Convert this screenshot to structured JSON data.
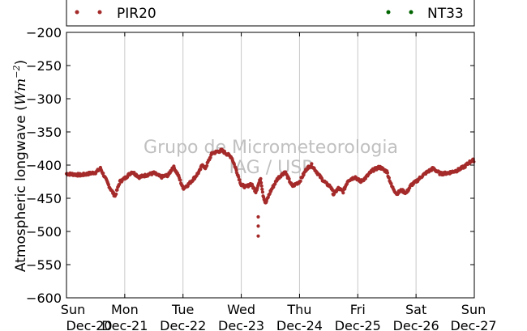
{
  "chart_data": {
    "type": "scatter",
    "title": "",
    "xlabel": "",
    "ylabel": "Atmospheric longwave (Wm⁻²)",
    "ylabel_main": "Atmospheric longwave (",
    "ylabel_unit": "Wm",
    "ylabel_sup": "−2",
    "ylabel_close": ")",
    "ylim": [
      -600,
      -200
    ],
    "yticks": [
      -200,
      -250,
      -300,
      -350,
      -400,
      -450,
      -500,
      -550,
      -600
    ],
    "ytick_labels": [
      "−200",
      "−250",
      "−300",
      "−350",
      "−400",
      "−450",
      "−500",
      "−550",
      "−600"
    ],
    "xlim": [
      "Dec-20",
      "Dec-27"
    ],
    "xticks": [
      {
        "day": "Sun",
        "date": "Dec-20"
      },
      {
        "day": "Mon",
        "date": "Dec-21"
      },
      {
        "day": "Tue",
        "date": "Dec-22"
      },
      {
        "day": "Wed",
        "date": "Dec-23"
      },
      {
        "day": "Thu",
        "date": "Dec-24"
      },
      {
        "day": "Fri",
        "date": "Dec-25"
      },
      {
        "day": "Sat",
        "date": "Dec-26"
      },
      {
        "day": "Sun",
        "date": "Dec-27"
      }
    ],
    "grid": "vertical",
    "legend_placement": "top",
    "watermark": [
      "Grupo de Micrometeorologia",
      "IAG / USP"
    ],
    "series": [
      {
        "name": "PIR20",
        "color": "#a52a2a",
        "points": [
          [
            "Dec-20 00:00",
            -413
          ],
          [
            "Dec-20 06:00",
            -415
          ],
          [
            "Dec-20 12:00",
            -411
          ],
          [
            "Dec-20 14:00",
            -405
          ],
          [
            "Dec-20 16:00",
            -420
          ],
          [
            "Dec-20 18:00",
            -435
          ],
          [
            "Dec-20 20:00",
            -447
          ],
          [
            "Dec-20 22:00",
            -425
          ],
          [
            "Dec-21 00:00",
            -420
          ],
          [
            "Dec-21 03:00",
            -410
          ],
          [
            "Dec-21 06:00",
            -418
          ],
          [
            "Dec-21 09:00",
            -415
          ],
          [
            "Dec-21 12:00",
            -412
          ],
          [
            "Dec-21 15:00",
            -418
          ],
          [
            "Dec-21 18:00",
            -415
          ],
          [
            "Dec-21 20:00",
            -402
          ],
          [
            "Dec-21 22:00",
            -415
          ],
          [
            "Dec-22 00:00",
            -435
          ],
          [
            "Dec-22 02:00",
            -430
          ],
          [
            "Dec-22 05:00",
            -418
          ],
          [
            "Dec-22 07:00",
            -408
          ],
          [
            "Dec-22 08:00",
            -398
          ],
          [
            "Dec-22 09:00",
            -406
          ],
          [
            "Dec-22 10:00",
            -398
          ],
          [
            "Dec-22 12:00",
            -382
          ],
          [
            "Dec-22 16:00",
            -378
          ],
          [
            "Dec-22 20:00",
            -388
          ],
          [
            "Dec-22 22:00",
            -408
          ],
          [
            "Dec-23 00:00",
            -430
          ],
          [
            "Dec-23 02:00",
            -433
          ],
          [
            "Dec-23 04:00",
            -428
          ],
          [
            "Dec-23 06:00",
            -440
          ],
          [
            "Dec-23 08:00",
            -420
          ],
          [
            "Dec-23 09:00",
            -445
          ],
          [
            "Dec-23 10:00",
            -458
          ],
          [
            "Dec-23 12:00",
            -440
          ],
          [
            "Dec-23 15:00",
            -420
          ],
          [
            "Dec-23 18:00",
            -410
          ],
          [
            "Dec-23 21:00",
            -432
          ],
          [
            "Dec-24 00:00",
            -425
          ],
          [
            "Dec-24 03:00",
            -405
          ],
          [
            "Dec-24 05:00",
            -400
          ],
          [
            "Dec-24 07:00",
            -410
          ],
          [
            "Dec-24 09:00",
            -420
          ],
          [
            "Dec-24 11:00",
            -428
          ],
          [
            "Dec-24 13:00",
            -433
          ],
          [
            "Dec-24 14:00",
            -444
          ],
          [
            "Dec-24 16:00",
            -435
          ],
          [
            "Dec-24 18:00",
            -440
          ],
          [
            "Dec-24 20:00",
            -423
          ],
          [
            "Dec-24 23:00",
            -418
          ],
          [
            "Dec-25 01:00",
            -425
          ],
          [
            "Dec-25 03:00",
            -420
          ],
          [
            "Dec-25 06:00",
            -408
          ],
          [
            "Dec-25 09:00",
            -403
          ],
          [
            "Dec-25 12:00",
            -410
          ],
          [
            "Dec-25 14:00",
            -432
          ],
          [
            "Dec-25 16:00",
            -443
          ],
          [
            "Dec-25 18:00",
            -438
          ],
          [
            "Dec-25 20:00",
            -442
          ],
          [
            "Dec-25 22:00",
            -430
          ],
          [
            "Dec-26 00:00",
            -425
          ],
          [
            "Dec-26 02:00",
            -418
          ],
          [
            "Dec-26 04:00",
            -412
          ],
          [
            "Dec-26 07:00",
            -405
          ],
          [
            "Dec-26 10:00",
            -413
          ],
          [
            "Dec-26 13:00",
            -412
          ],
          [
            "Dec-26 17:00",
            -408
          ],
          [
            "Dec-26 20:00",
            -402
          ],
          [
            "Dec-26 23:00",
            -393
          ],
          [
            "Dec-27 00:00",
            -393
          ]
        ],
        "spike": [
          [
            "Dec-23 07:00",
            -478
          ],
          [
            "Dec-23 07:00",
            -492
          ],
          [
            "Dec-23 07:00",
            -507
          ]
        ]
      },
      {
        "name": "NT33",
        "color": "#006400",
        "points": []
      }
    ]
  }
}
